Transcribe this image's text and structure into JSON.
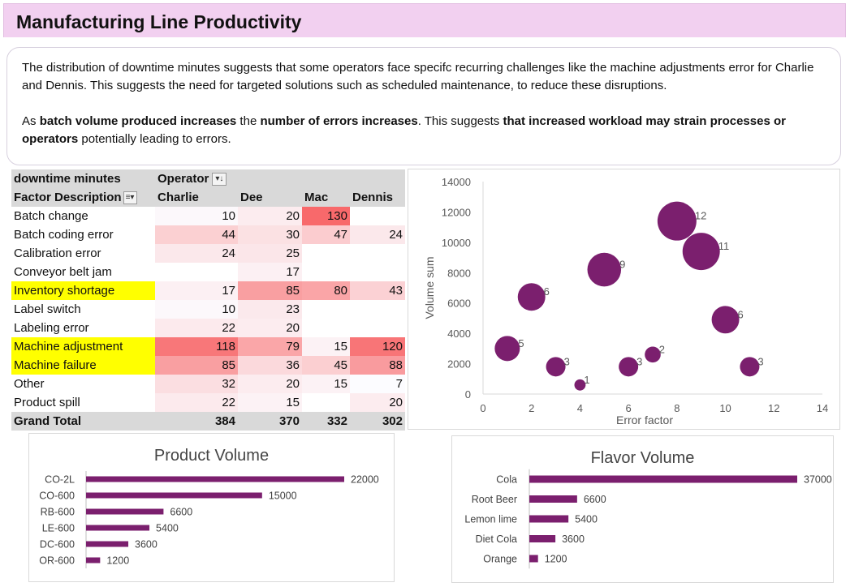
{
  "title": "Manufacturing Line Productivity",
  "insights": {
    "p1": "The distribution of downtime minutes suggests that some operators face specifc recurring challenges like the machine adjustments error for Charlie and Dennis. This suggests the need for targeted solutions such as scheduled maintenance, to reduce these disruptions.",
    "p2_a": "As ",
    "p2_b": "batch volume produced increases",
    "p2_c": " the ",
    "p2_d": "number of errors increases",
    "p2_e": ". This suggests ",
    "p2_f": "that increased workload may strain processes or operators",
    "p2_g": " potentially leading to errors."
  },
  "pivot": {
    "values_label": "downtime minutes",
    "column_field": "Operator",
    "row_field": "Factor Description",
    "filter_icon": "sort-filter-icon",
    "operators": [
      "Charlie",
      "Dee",
      "Mac",
      "Dennis"
    ],
    "rows": [
      {
        "factor": "Batch change",
        "values": [
          "10",
          "20",
          "130",
          ""
        ],
        "highlight": false
      },
      {
        "factor": "Batch coding error",
        "values": [
          "44",
          "30",
          "47",
          "24"
        ],
        "highlight": false
      },
      {
        "factor": "Calibration error",
        "values": [
          "24",
          "25",
          "",
          ""
        ],
        "highlight": false
      },
      {
        "factor": "Conveyor belt jam",
        "values": [
          "",
          "17",
          "",
          ""
        ],
        "highlight": false
      },
      {
        "factor": "Inventory shortage",
        "values": [
          "17",
          "85",
          "80",
          "43"
        ],
        "highlight": true
      },
      {
        "factor": "Label switch",
        "values": [
          "10",
          "23",
          "",
          ""
        ],
        "highlight": false
      },
      {
        "factor": "Labeling error",
        "values": [
          "22",
          "20",
          "",
          ""
        ],
        "highlight": false
      },
      {
        "factor": "Machine adjustment",
        "values": [
          "118",
          "79",
          "15",
          "120"
        ],
        "highlight": true
      },
      {
        "factor": "Machine failure",
        "values": [
          "85",
          "36",
          "45",
          "88"
        ],
        "highlight": true
      },
      {
        "factor": "Other",
        "values": [
          "32",
          "20",
          "15",
          "7"
        ],
        "highlight": false
      },
      {
        "factor": "Product spill",
        "values": [
          "22",
          "15",
          "",
          "20"
        ],
        "highlight": false
      }
    ],
    "total_label": "Grand Total",
    "totals": [
      "384",
      "370",
      "332",
      "302"
    ],
    "highlight_color": "#ffff00",
    "heat_color": "#f8696b"
  },
  "chart_data": [
    {
      "type": "scatter",
      "title": "",
      "xlabel": "Error factor",
      "ylabel": "Volume sum",
      "xlim": [
        0,
        14
      ],
      "ylim": [
        0,
        14000
      ],
      "xticks": [
        0,
        2,
        4,
        6,
        8,
        10,
        12,
        14
      ],
      "yticks": [
        0,
        2000,
        4000,
        6000,
        8000,
        10000,
        12000,
        14000
      ],
      "color": "#7b1f6e",
      "points": [
        {
          "x": 1,
          "y": 3000,
          "label": "5"
        },
        {
          "x": 2,
          "y": 6400,
          "label": "6"
        },
        {
          "x": 3,
          "y": 1800,
          "label": "3"
        },
        {
          "x": 4,
          "y": 600,
          "label": "1"
        },
        {
          "x": 5,
          "y": 8200,
          "label": "9"
        },
        {
          "x": 6,
          "y": 1800,
          "label": "3"
        },
        {
          "x": 7,
          "y": 2600,
          "label": "2"
        },
        {
          "x": 8,
          "y": 11400,
          "label": "12"
        },
        {
          "x": 9,
          "y": 9400,
          "label": "11"
        },
        {
          "x": 10,
          "y": 4900,
          "label": "6"
        },
        {
          "x": 11,
          "y": 1800,
          "label": "3"
        }
      ]
    },
    {
      "type": "bar",
      "orientation": "horizontal",
      "title": "Product Volume",
      "color": "#7b1f6e",
      "categories": [
        "CO-2L",
        "CO-600",
        "RB-600",
        "LE-600",
        "DC-600",
        "OR-600"
      ],
      "values": [
        22000,
        15000,
        6600,
        5400,
        3600,
        1200
      ]
    },
    {
      "type": "bar",
      "orientation": "horizontal",
      "title": "Flavor Volume",
      "color": "#7b1f6e",
      "categories": [
        "Cola",
        "Root Beer",
        "Lemon lime",
        "Diet Cola",
        "Orange"
      ],
      "values": [
        37000,
        6600,
        5400,
        3600,
        1200
      ]
    }
  ]
}
